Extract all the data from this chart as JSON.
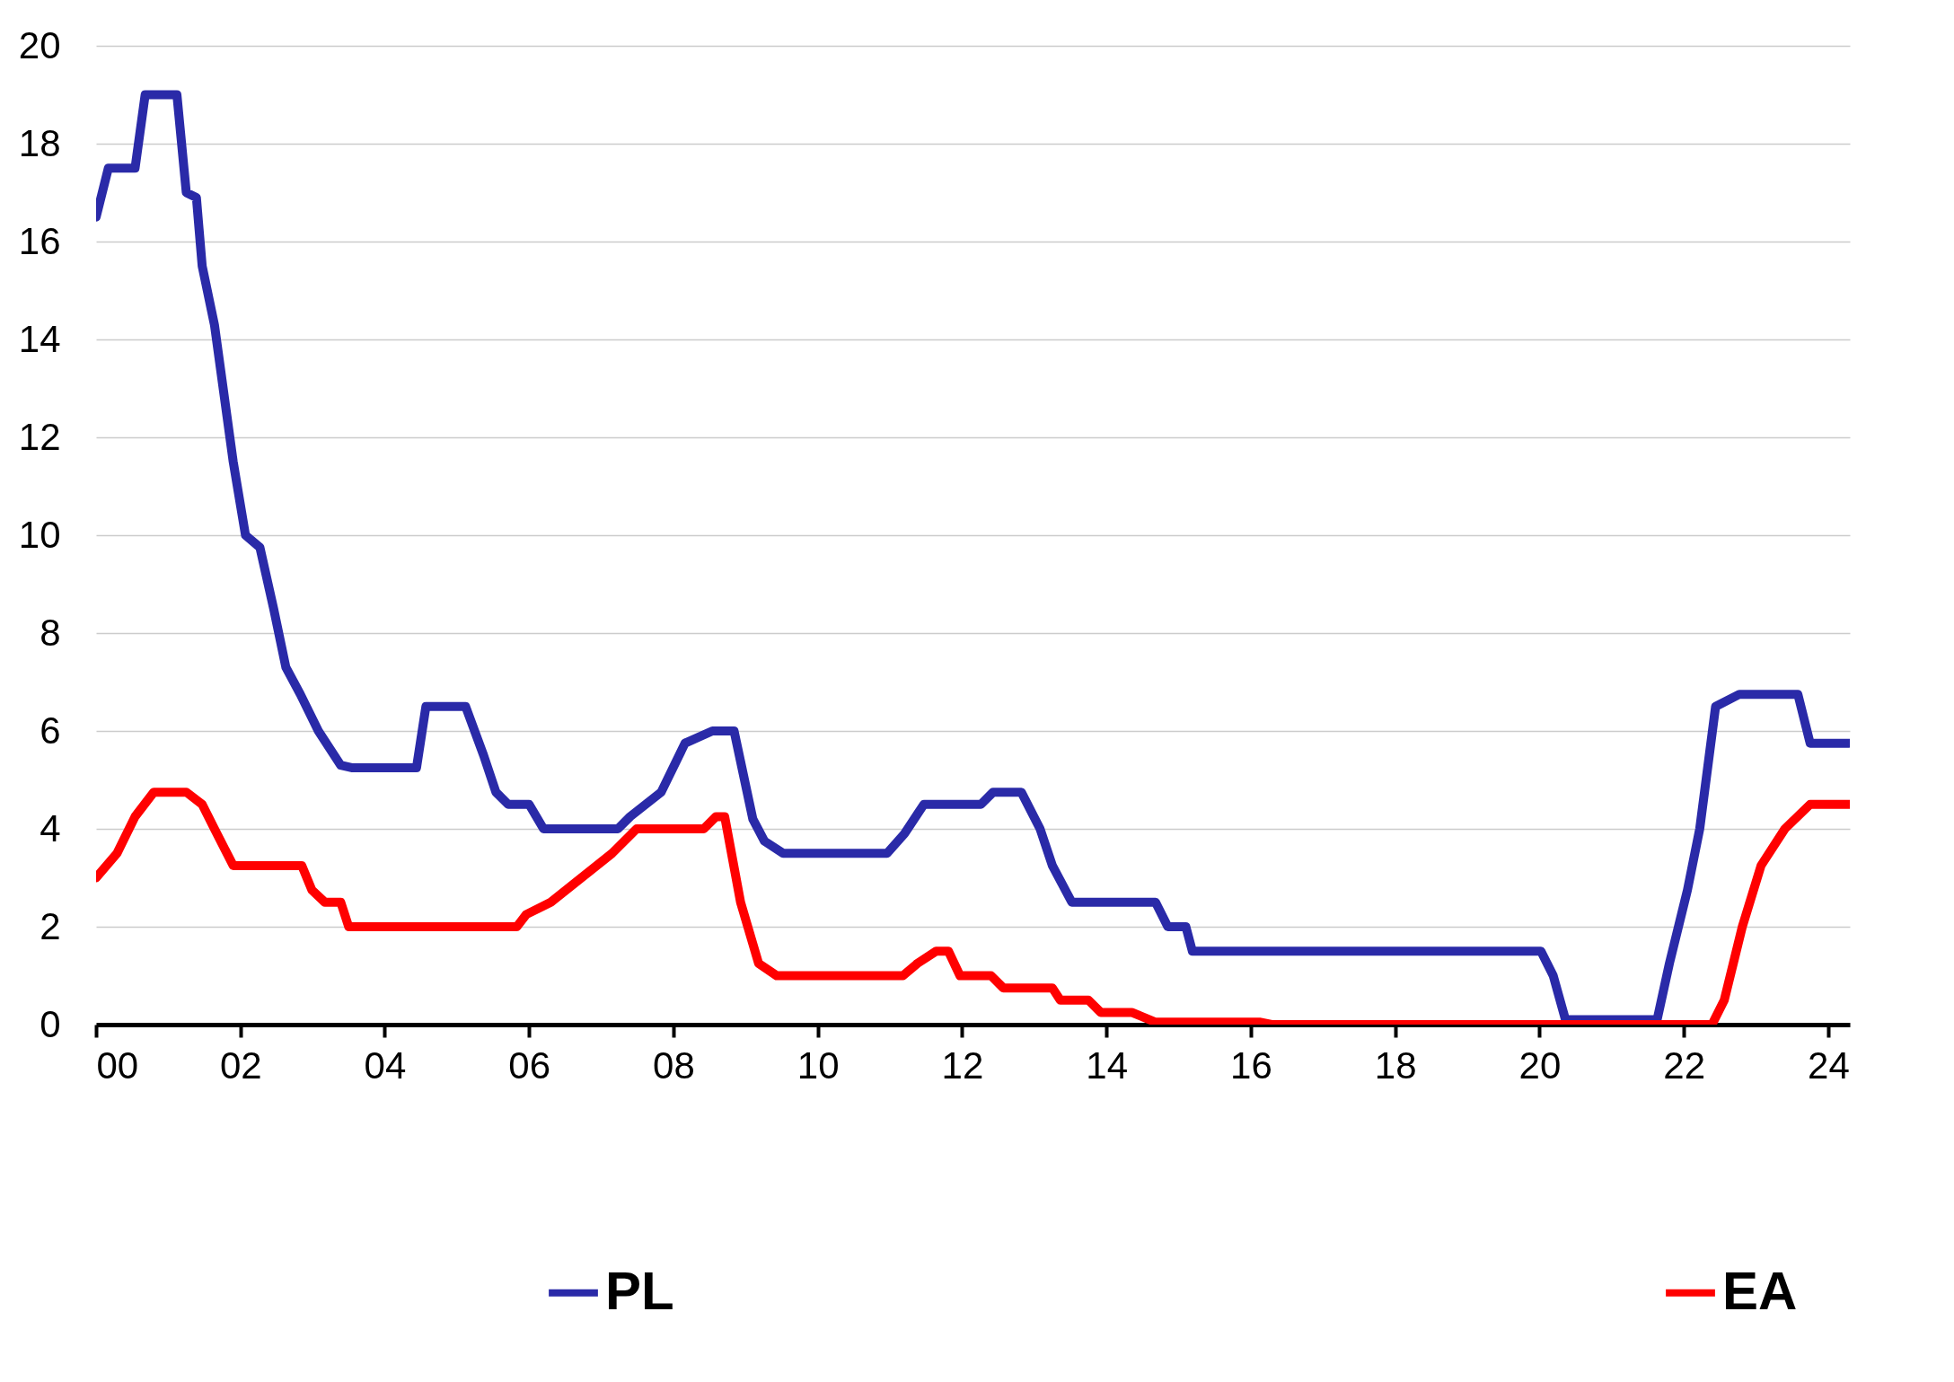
{
  "chart_data": {
    "type": "line",
    "xlim": [
      2000,
      2024.3
    ],
    "ylim": [
      0,
      20
    ],
    "xticks": [
      {
        "value": 2000,
        "label": "00"
      },
      {
        "value": 2002,
        "label": "02"
      },
      {
        "value": 2004,
        "label": "04"
      },
      {
        "value": 2006,
        "label": "06"
      },
      {
        "value": 2008,
        "label": "08"
      },
      {
        "value": 2010,
        "label": "10"
      },
      {
        "value": 2012,
        "label": "12"
      },
      {
        "value": 2014,
        "label": "14"
      },
      {
        "value": 2016,
        "label": "16"
      },
      {
        "value": 2018,
        "label": "18"
      },
      {
        "value": 2020,
        "label": "20"
      },
      {
        "value": 2022,
        "label": "22"
      },
      {
        "value": 2024,
        "label": "24"
      }
    ],
    "yticks": [
      0,
      2,
      4,
      6,
      8,
      10,
      12,
      14,
      16,
      18,
      20
    ],
    "grid": "y",
    "legend": "bottom",
    "line_style": "solid",
    "marker": "none",
    "series": [
      {
        "name": "PL",
        "color": "#2a2aa8",
        "x": [
          2000.0,
          2000.17,
          2000.54,
          2000.68,
          2001.12,
          2001.25,
          2001.39,
          2001.47,
          2001.64,
          2001.9,
          2002.07,
          2002.27,
          2002.46,
          2002.63,
          2002.83,
          2003.08,
          2003.39,
          2003.54,
          2004.44,
          2004.57,
          2005.12,
          2005.37,
          2005.54,
          2005.71,
          2006.0,
          2006.2,
          2007.23,
          2007.4,
          2007.83,
          2008.16,
          2008.54,
          2008.84,
          2009.1,
          2009.26,
          2009.52,
          2010.96,
          2011.2,
          2011.47,
          2012.26,
          2012.43,
          2012.82,
          2013.08,
          2013.25,
          2013.52,
          2014.68,
          2014.85,
          2015.1,
          2015.19,
          2020.02,
          2020.19,
          2020.36,
          2021.63,
          2021.8,
          2022.05,
          2022.22,
          2022.44,
          2022.77,
          2023.58,
          2023.75,
          2024.29
        ],
        "values": [
          16.5,
          17.5,
          17.5,
          19,
          19,
          17,
          16.9,
          15.5,
          14.3,
          11.5,
          10,
          9.75,
          8.5,
          7.3,
          6.75,
          6,
          5.3,
          5.25,
          5.25,
          6.5,
          6.5,
          5.5,
          4.75,
          4.5,
          4.5,
          4,
          4,
          4.25,
          4.75,
          5.75,
          6,
          6,
          4.2,
          3.75,
          3.5,
          3.5,
          3.9,
          4.5,
          4.5,
          4.75,
          4.75,
          4,
          3.25,
          2.5,
          2.5,
          2,
          2,
          1.5,
          1.5,
          1,
          0.1,
          0.1,
          1.25,
          2.75,
          4,
          6.5,
          6.75,
          6.75,
          5.75,
          5.75
        ]
      },
      {
        "name": "EA",
        "color": "#ff0000",
        "x": [
          2000.0,
          2000.29,
          2000.54,
          2000.8,
          2001.25,
          2001.47,
          2001.64,
          2001.9,
          2002.85,
          2002.99,
          2003.17,
          2003.39,
          2003.5,
          2005.83,
          2005.96,
          2006.3,
          2007.15,
          2007.49,
          2008.42,
          2008.59,
          2008.71,
          2008.93,
          2009.18,
          2009.43,
          2011.18,
          2011.38,
          2011.64,
          2011.81,
          2011.97,
          2012.4,
          2012.57,
          2013.25,
          2013.36,
          2013.75,
          2013.92,
          2014.35,
          2014.68,
          2016.12,
          2016.29,
          2022.39,
          2022.56,
          2022.81,
          2023.07,
          2023.4,
          2023.75,
          2024.29
        ],
        "values": [
          3,
          3.5,
          4.25,
          4.75,
          4.75,
          4.5,
          4,
          3.25,
          3.25,
          2.75,
          2.5,
          2.5,
          2,
          2,
          2.25,
          2.5,
          3.5,
          4,
          4,
          4.25,
          4.25,
          2.5,
          1.25,
          1,
          1,
          1.25,
          1.5,
          1.5,
          1,
          1,
          0.75,
          0.75,
          0.5,
          0.5,
          0.25,
          0.25,
          0.05,
          0.05,
          0,
          0,
          0.5,
          2,
          3.25,
          4,
          4.5,
          4.5
        ]
      }
    ]
  }
}
